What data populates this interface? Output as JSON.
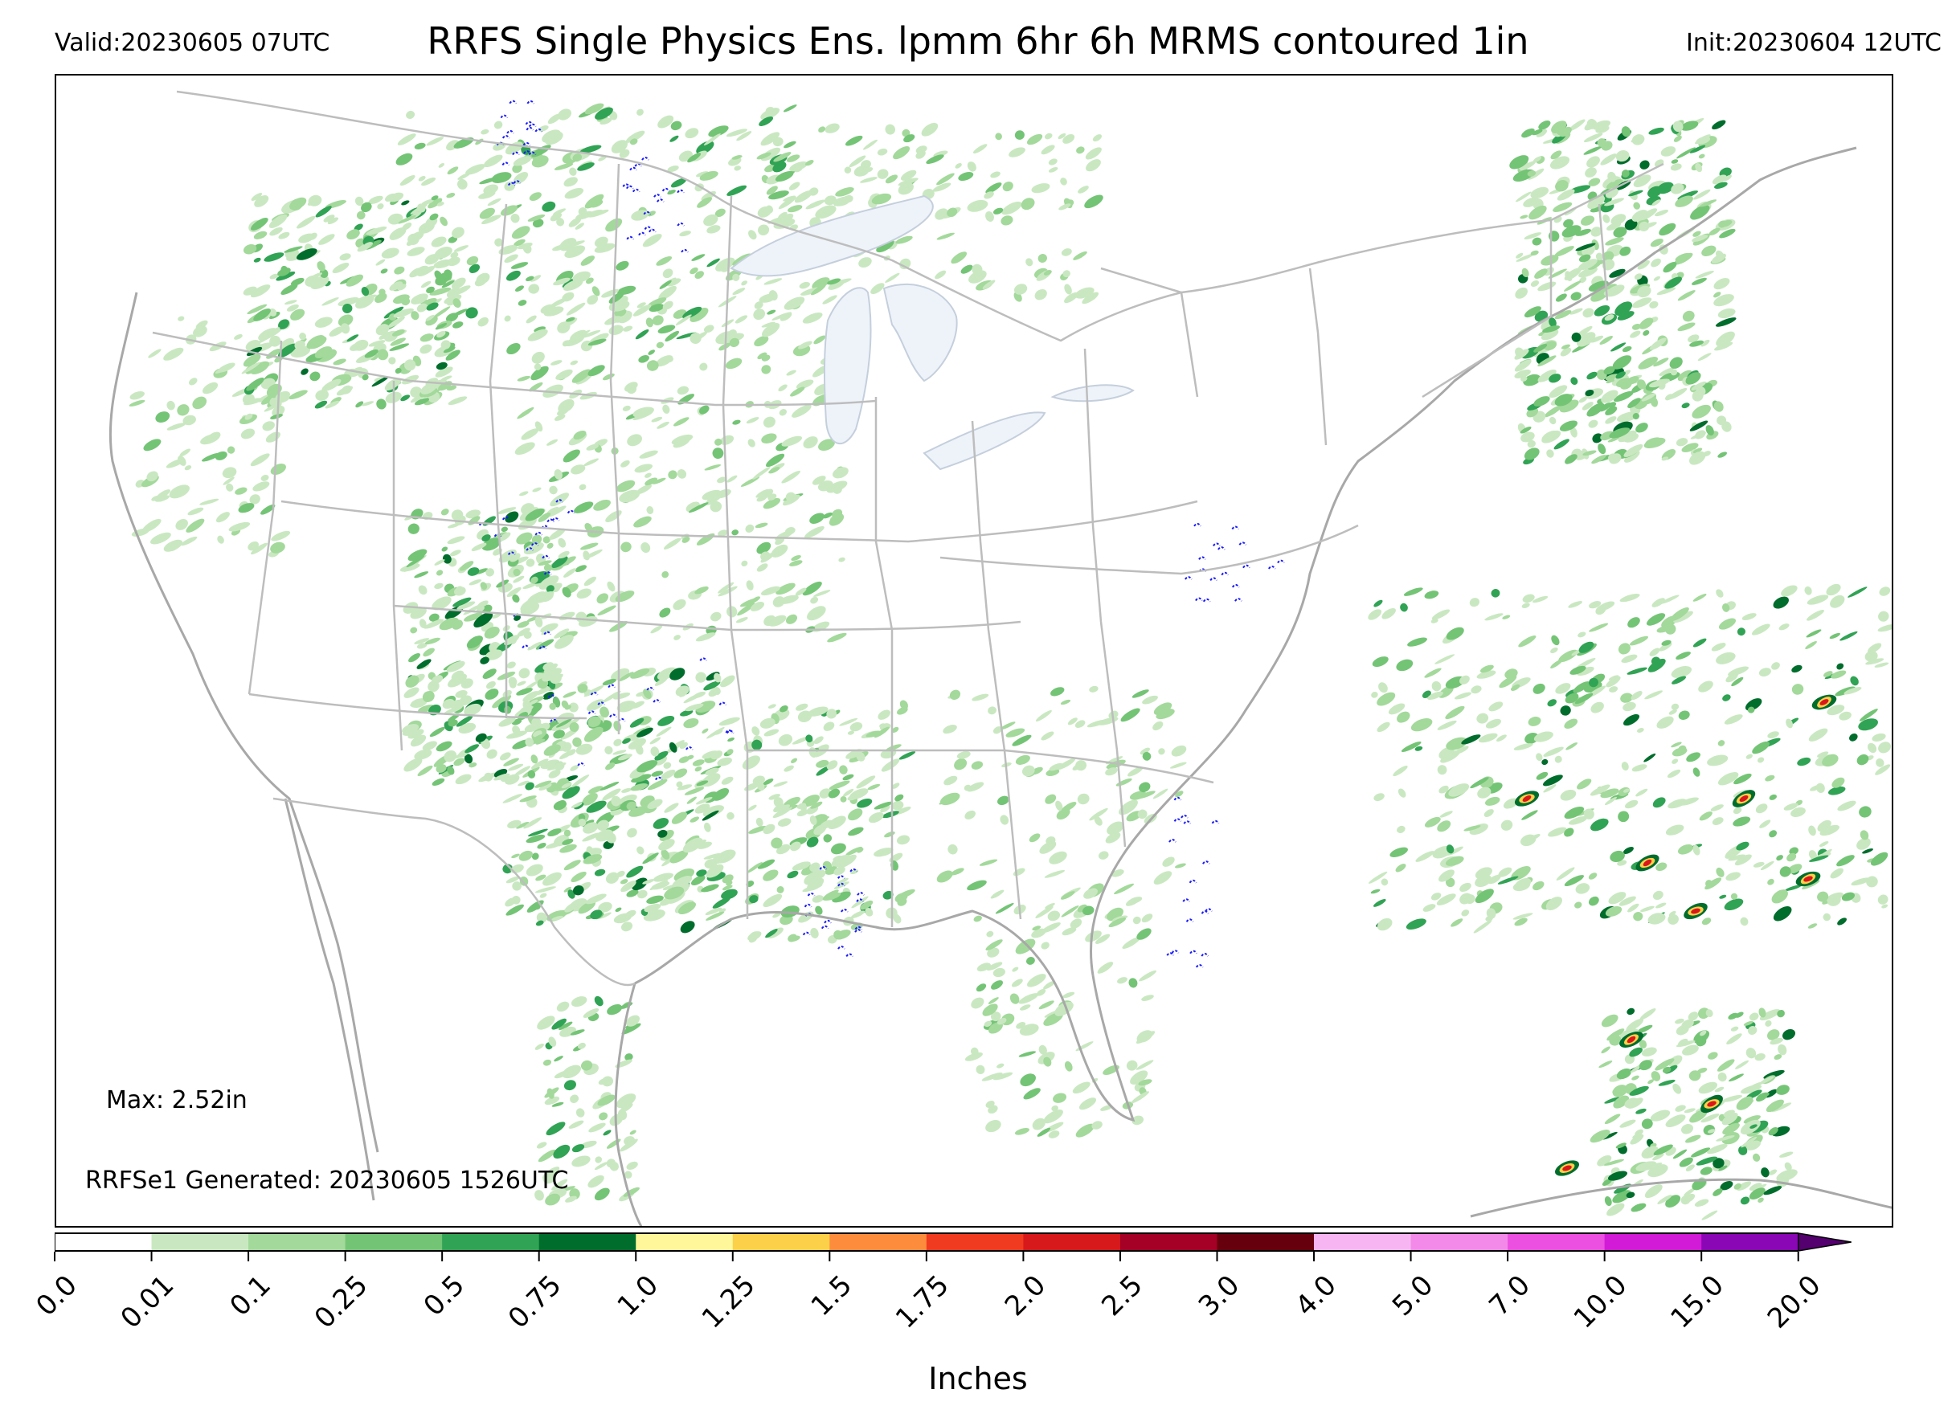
{
  "header": {
    "valid": "Valid:20230605 07UTC",
    "title": "RRFS Single Physics Ens. lpmm 6hr 6h MRMS contoured 1in",
    "init": "Init:20230604 12UTC"
  },
  "annotations": {
    "max": "Max: 2.52in",
    "generated": "RRFSe1 Generated: 20230605 1526UTC"
  },
  "colorbar": {
    "label": "Inches",
    "ticks": [
      "0.0",
      "0.01",
      "0.1",
      "0.25",
      "0.5",
      "0.75",
      "1.0",
      "1.25",
      "1.5",
      "1.75",
      "2.0",
      "2.5",
      "3.0",
      "4.0",
      "5.0",
      "7.0",
      "10.0",
      "15.0",
      "20.0"
    ],
    "colors": [
      "#ffffff",
      "#c9e8c1",
      "#a3d99b",
      "#74c476",
      "#31a354",
      "#006d2c",
      "#fff799",
      "#fdd049",
      "#fd8d3c",
      "#f03b20",
      "#d7191c",
      "#a50026",
      "#67000d",
      "#f7b6f2",
      "#f38ae9",
      "#eb50e0",
      "#d11bd6",
      "#8a07b5"
    ],
    "extend_color": "#54006e",
    "contour_color": "#1a1aff",
    "contour_value": "1in"
  },
  "map": {
    "border_color": "#bdbdbd",
    "coast_color": "#a8a8a8",
    "lake_fill": "#eef3fa"
  }
}
